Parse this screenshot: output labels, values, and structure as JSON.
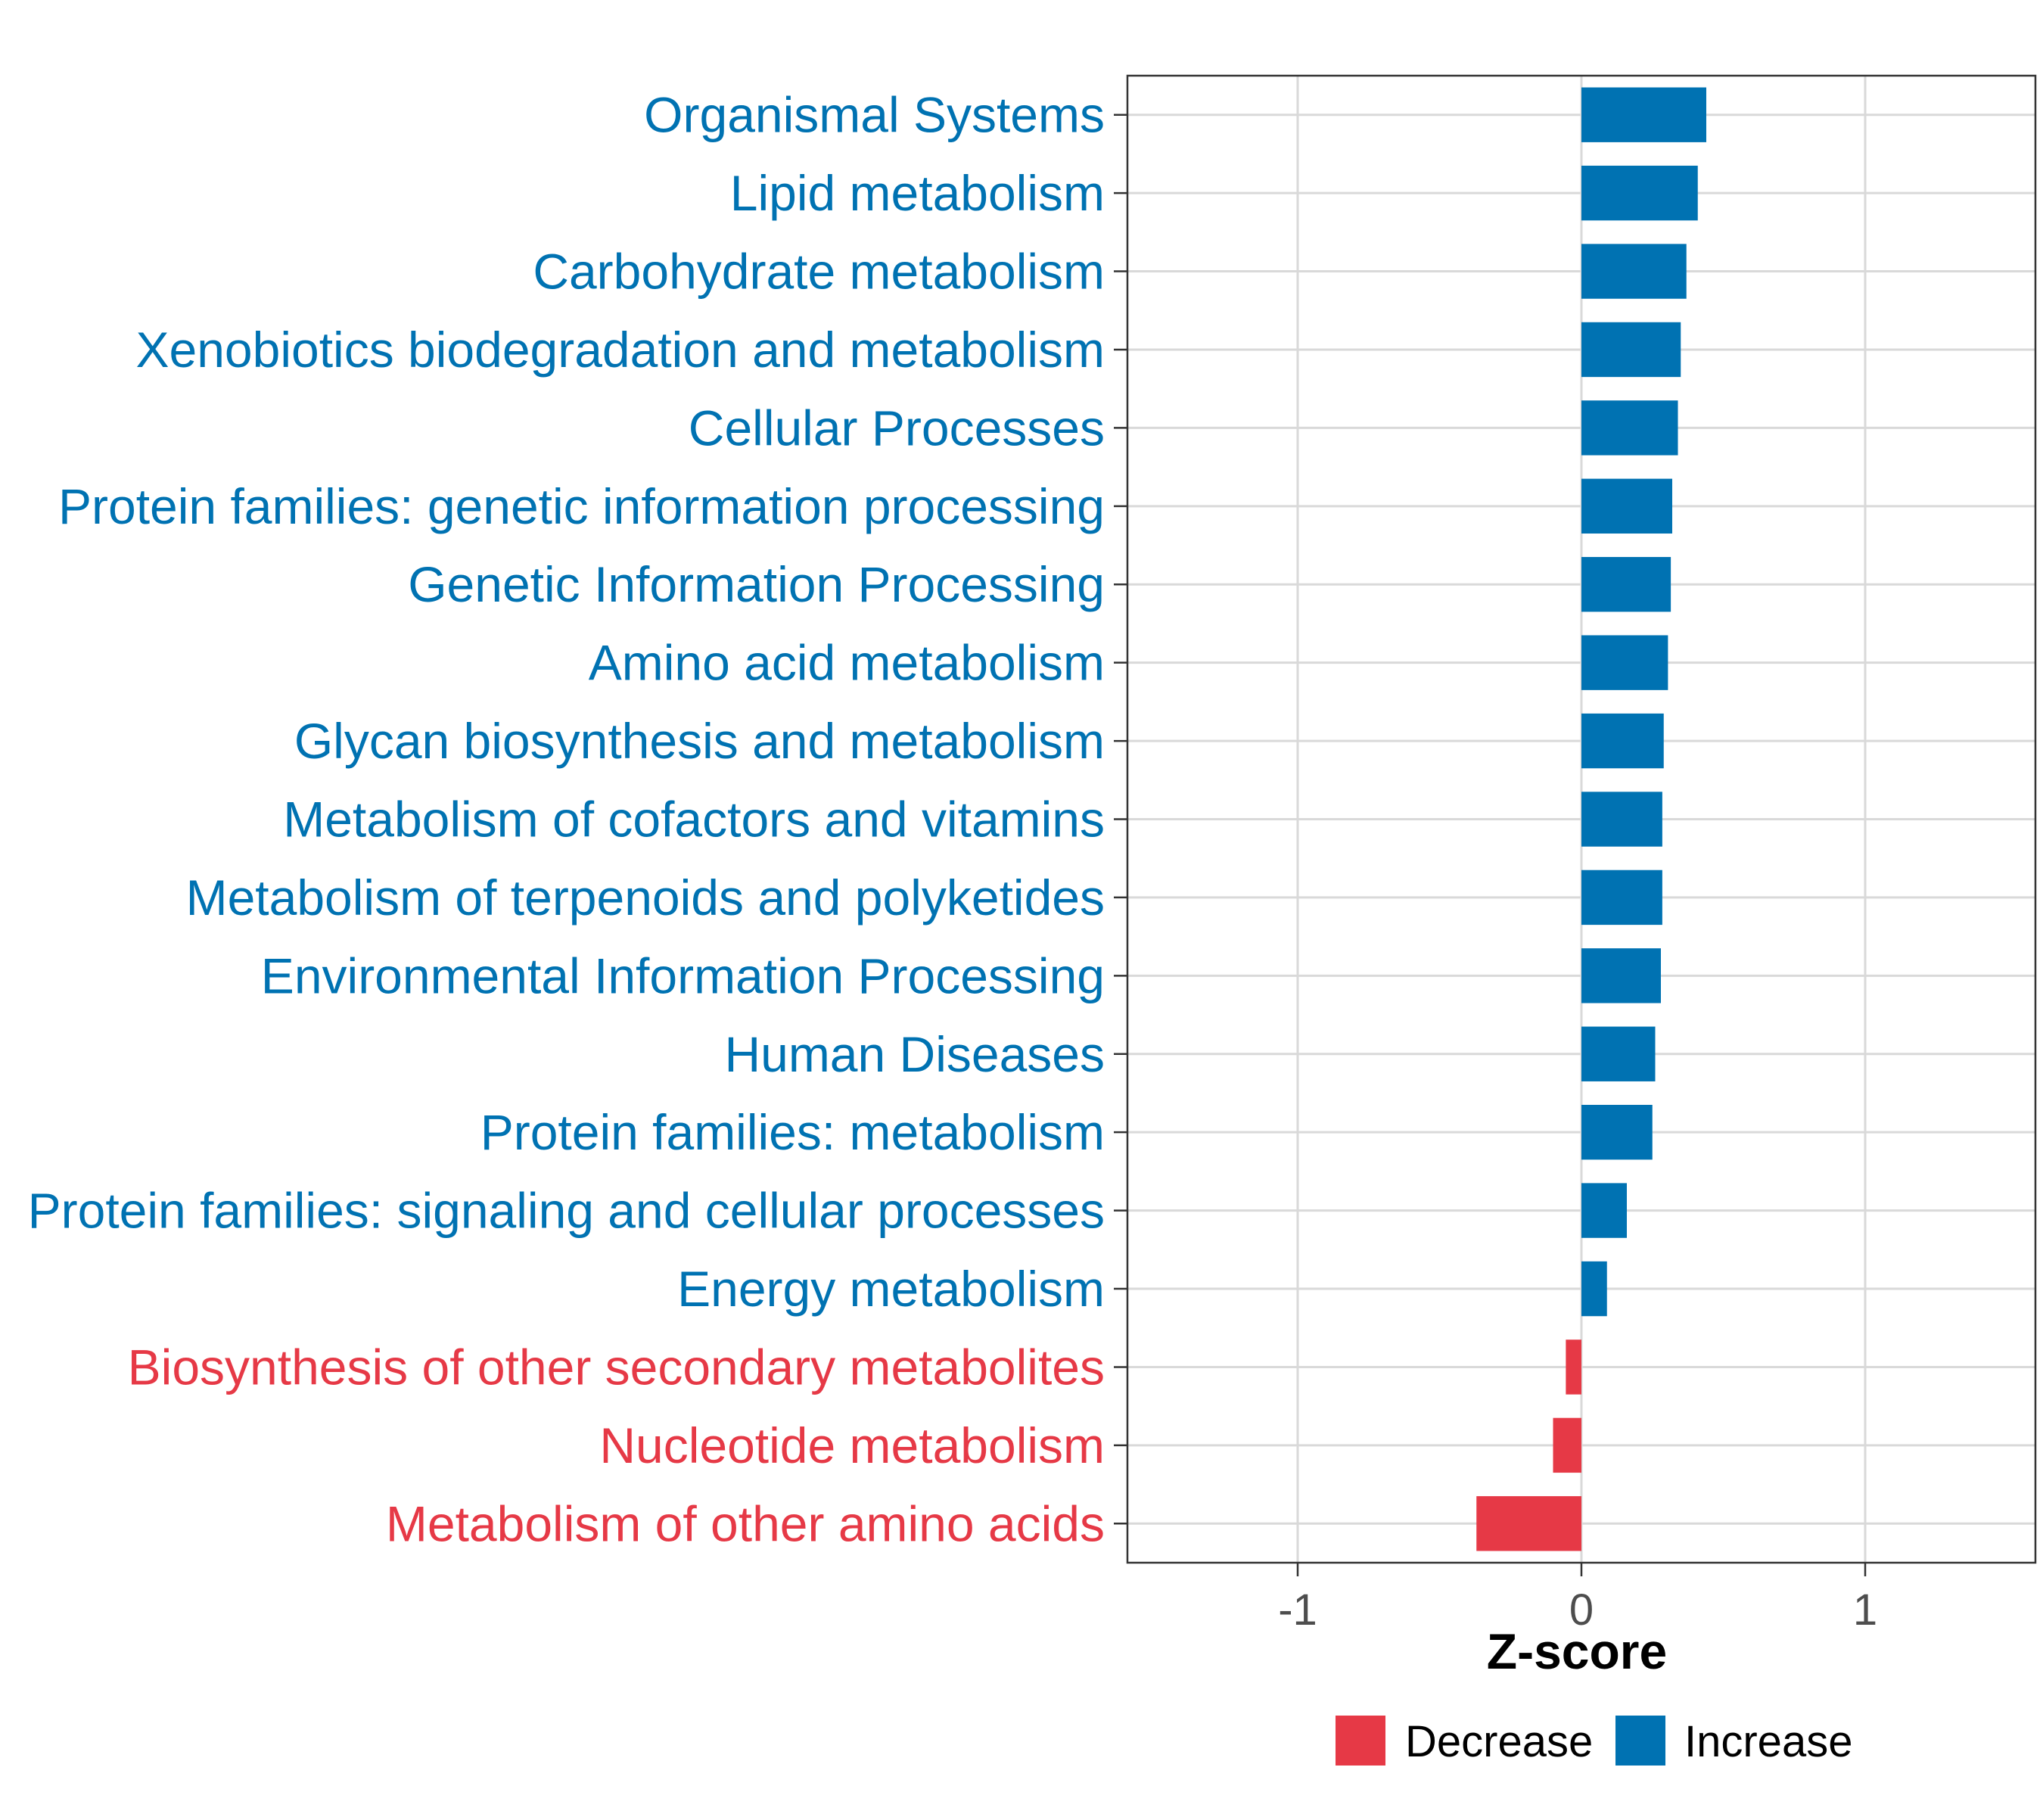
{
  "chart_data": {
    "type": "bar",
    "orientation": "horizontal",
    "title": "",
    "xlabel": "Z-score",
    "ylabel": "",
    "xlim": [
      -1.6,
      1.6
    ],
    "xticks": [
      -1,
      0,
      1
    ],
    "xtick_labels": [
      "-1",
      "0",
      "1"
    ],
    "grid": true,
    "legend_position": "bottom",
    "colors": {
      "Decrease": "#e63946",
      "Increase": "#0072b2"
    },
    "legend": [
      {
        "label": "Decrease",
        "color": "#e63946"
      },
      {
        "label": "Increase",
        "color": "#0072b2"
      }
    ],
    "categories": [
      "Organismal Systems",
      "Lipid metabolism",
      "Carbohydrate metabolism",
      "Xenobiotics biodegradation and metabolism",
      "Cellular Processes",
      "Protein families: genetic information processing",
      "Genetic Information Processing",
      "Amino acid metabolism",
      "Glycan biosynthesis and metabolism",
      "Metabolism of cofactors and vitamins",
      "Metabolism of terpenoids and polyketides",
      "Environmental Information Processing",
      "Human Diseases",
      "Protein families: metabolism",
      "Protein families: signaling and cellular processes",
      "Energy metabolism",
      "Biosynthesis of other secondary metabolites",
      "Nucleotide metabolism",
      "Metabolism of other amino acids"
    ],
    "values": [
      0.44,
      0.41,
      0.37,
      0.35,
      0.34,
      0.32,
      0.315,
      0.305,
      0.29,
      0.285,
      0.285,
      0.28,
      0.26,
      0.25,
      0.16,
      0.09,
      -0.055,
      -0.1,
      -0.37
    ],
    "groups": [
      "Increase",
      "Increase",
      "Increase",
      "Increase",
      "Increase",
      "Increase",
      "Increase",
      "Increase",
      "Increase",
      "Increase",
      "Increase",
      "Increase",
      "Increase",
      "Increase",
      "Increase",
      "Increase",
      "Decrease",
      "Decrease",
      "Decrease"
    ]
  }
}
